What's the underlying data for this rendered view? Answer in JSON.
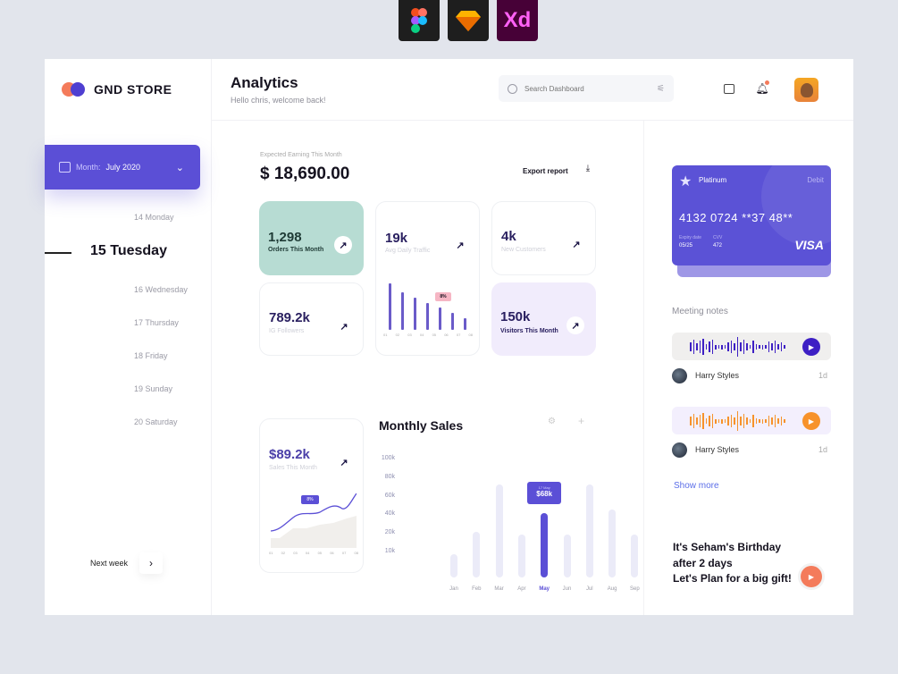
{
  "tool_icons": [
    "figma-icon",
    "sketch-icon",
    "xd-icon"
  ],
  "xd_label": "Xd",
  "brand": {
    "name": "GND STORE"
  },
  "header": {
    "title": "Analytics",
    "subtitle": "Hello chris, welcome back!",
    "search_placeholder": "Search Dashboard"
  },
  "calendar": {
    "month_label": "Month:",
    "month_value": "July 2020",
    "days": [
      "14 Monday",
      "15 Tuesday",
      "16 Wednesday",
      "17 Thursday",
      "18 Friday",
      "19 Sunday",
      "20 Saturday"
    ],
    "selected_index": 1,
    "next_label": "Next week"
  },
  "earnings": {
    "label": "Expected Earning This Month",
    "value": "$ 18,690.00",
    "export_label": "Export report"
  },
  "stats": {
    "orders": {
      "value": "1,298",
      "label": "Orders This Month"
    },
    "traffic": {
      "value": "19k",
      "label": "Avg Daily Traffic",
      "badge": "8%",
      "bars": [
        100,
        81,
        70,
        57,
        48,
        37,
        25
      ],
      "ticks": [
        "01",
        "02",
        "03",
        "04",
        "05",
        "06",
        "07",
        "08"
      ]
    },
    "customers": {
      "value": "4k",
      "label": "New Customers"
    },
    "followers": {
      "value": "789.2k",
      "label": "IG Followers"
    },
    "visitors": {
      "value": "150k",
      "label": "Visitors This Month"
    },
    "sales": {
      "value": "$89.2k",
      "label": "Sales This Month",
      "badge": "8%",
      "ticks": [
        "01",
        "02",
        "03",
        "04",
        "05",
        "06",
        "07",
        "08"
      ]
    }
  },
  "chart_data": {
    "type": "bar",
    "title": "Monthly Sales",
    "categories": [
      "Jan",
      "Feb",
      "Mar",
      "Apr",
      "May",
      "Jun",
      "Jul",
      "Aug",
      "Sep"
    ],
    "values": [
      25,
      48,
      98,
      45,
      68,
      45,
      98,
      72,
      45
    ],
    "yticks": [
      "100k",
      "80k",
      "60k",
      "40k",
      "20k",
      "10k"
    ],
    "highlight": "May",
    "tooltip": {
      "date": "17 May",
      "value": "$68k"
    },
    "colors": {
      "bar": "#ebebf8",
      "highlight": "#5b4fd6"
    }
  },
  "card": {
    "tier": "Platinum",
    "type": "Debit",
    "number": "4132 0724 **37 48**",
    "expiry_label": "Expiry date",
    "expiry": "05/25",
    "cvv_label": "CVV",
    "cvv": "472",
    "network": "VISA"
  },
  "meetings": {
    "title": "Meeting notes",
    "items": [
      {
        "name": "Harry Styles",
        "time": "1d",
        "color": "#3d1fc4"
      },
      {
        "name": "Harry Styles",
        "time": "1d",
        "color": "#f7922b"
      }
    ],
    "show_more": "Show more"
  },
  "birthday": {
    "lines": [
      "It's Seham's Birthday",
      "after 2 days",
      "Let's Plan for a big gift!"
    ]
  },
  "colors": {
    "accent": "#5b4fd6",
    "mint": "#b7dcd3",
    "lavender": "#f1ecfc"
  }
}
